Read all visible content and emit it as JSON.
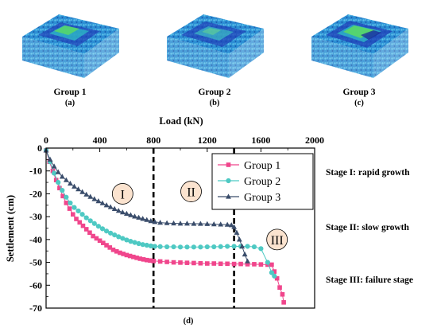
{
  "panels": [
    {
      "label": "Group 1",
      "tag": "(a)"
    },
    {
      "label": "Group 2",
      "tag": "(b)"
    },
    {
      "label": "Group 3",
      "tag": "(c)"
    }
  ],
  "chart_tag": "(d)",
  "stages": [
    "Stage I: rapid growth",
    "Stage II: slow growth",
    "Stage III: failure stage"
  ],
  "colors": {
    "group1": "#f0468c",
    "group2": "#4ec9c3",
    "group3": "#3a4d6b",
    "stage_circle": "#fbe3cf"
  },
  "chart_data": {
    "type": "line",
    "xlabel": "Load (kN)",
    "ylabel": "Settlement (cm)",
    "xlim": [
      0,
      2000
    ],
    "ylim": [
      -70,
      0
    ],
    "xticks": [
      "0",
      "400",
      "800",
      "1200",
      "1600",
      "2000"
    ],
    "yticks": [
      "0",
      "-10",
      "-20",
      "-30",
      "-40",
      "-50",
      "-60",
      "-70"
    ],
    "x_axis_position": "top",
    "legend_position": "top-right",
    "stage_boundaries": [
      800,
      1400
    ],
    "stage_labels": [
      {
        "text": "I",
        "x": 570,
        "y": -20
      },
      {
        "text": "II",
        "x": 1080,
        "y": -19
      },
      {
        "text": "III",
        "x": 1720,
        "y": -40
      }
    ],
    "series": [
      {
        "name": "Group 1",
        "marker": "square",
        "x": [
          0,
          25,
          50,
          75,
          100,
          125,
          150,
          175,
          200,
          225,
          250,
          275,
          300,
          325,
          350,
          375,
          400,
          425,
          450,
          475,
          500,
          525,
          550,
          575,
          600,
          625,
          650,
          675,
          700,
          725,
          750,
          775,
          800,
          850,
          900,
          950,
          1000,
          1050,
          1100,
          1150,
          1200,
          1250,
          1300,
          1350,
          1400,
          1450,
          1500,
          1550,
          1600,
          1650,
          1680,
          1700,
          1720,
          1740,
          1760,
          1770
        ],
        "y": [
          -1,
          -6,
          -10,
          -14,
          -17.5,
          -21,
          -24,
          -26.5,
          -29,
          -31,
          -32.5,
          -34,
          -35.5,
          -37,
          -38.5,
          -39.5,
          -40.5,
          -41.5,
          -42.5,
          -43.5,
          -44.5,
          -45.2,
          -45.8,
          -46.3,
          -46.8,
          -47.2,
          -47.6,
          -48,
          -48.4,
          -48.7,
          -49,
          -49.2,
          -49.4,
          -49.6,
          -49.8,
          -50,
          -50.1,
          -50.2,
          -50.3,
          -50.4,
          -50.5,
          -50.5,
          -50.6,
          -50.6,
          -50.7,
          -50.7,
          -50.8,
          -50.8,
          -50.9,
          -51,
          -51,
          -54,
          -57,
          -61,
          -64,
          -67.5
        ]
      },
      {
        "name": "Group 2",
        "marker": "circle",
        "x": [
          0,
          30,
          60,
          90,
          120,
          150,
          180,
          210,
          240,
          270,
          300,
          330,
          360,
          390,
          420,
          450,
          480,
          510,
          540,
          570,
          600,
          630,
          660,
          690,
          720,
          750,
          780,
          810,
          850,
          900,
          950,
          1000,
          1050,
          1100,
          1150,
          1200,
          1250,
          1300,
          1350,
          1400,
          1450,
          1500,
          1550,
          1600,
          1650,
          1680,
          1700
        ],
        "y": [
          -1,
          -6,
          -11,
          -15,
          -18.5,
          -21.5,
          -24,
          -26,
          -27.5,
          -29,
          -30.5,
          -31.8,
          -33,
          -34.2,
          -35.3,
          -36.3,
          -37.2,
          -38,
          -38.8,
          -39.5,
          -40.2,
          -40.8,
          -41.3,
          -41.8,
          -42.2,
          -42.5,
          -42.8,
          -43,
          -43.1,
          -43.2,
          -43.2,
          -43.3,
          -43.3,
          -43.3,
          -43.3,
          -43.2,
          -43.2,
          -43.1,
          -43,
          -43,
          -43,
          -43,
          -43.2,
          -44,
          -50,
          -54.5,
          -56
        ]
      },
      {
        "name": "Group 3",
        "marker": "triangle",
        "x": [
          0,
          30,
          60,
          90,
          120,
          150,
          180,
          210,
          240,
          270,
          300,
          330,
          360,
          390,
          420,
          450,
          480,
          510,
          540,
          570,
          600,
          630,
          660,
          690,
          720,
          750,
          780,
          810,
          850,
          900,
          950,
          1000,
          1050,
          1100,
          1150,
          1200,
          1250,
          1300,
          1350,
          1380,
          1400,
          1420,
          1440,
          1460,
          1480,
          1500
        ],
        "y": [
          -1,
          -5,
          -8,
          -10.5,
          -12.5,
          -14,
          -15.5,
          -16.8,
          -18,
          -19.2,
          -20.3,
          -21.3,
          -22.3,
          -23.2,
          -24.1,
          -25,
          -25.8,
          -26.6,
          -27.4,
          -28.1,
          -28.7,
          -29.3,
          -29.9,
          -30.4,
          -30.9,
          -31.4,
          -31.9,
          -32.3,
          -32.6,
          -32.8,
          -32.9,
          -33,
          -33,
          -33.1,
          -33.1,
          -33.2,
          -33.3,
          -33.4,
          -33.5,
          -33.7,
          -34.5,
          -37,
          -40,
          -43,
          -46.5,
          -49.5
        ]
      }
    ]
  }
}
